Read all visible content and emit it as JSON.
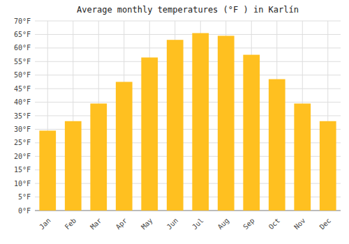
{
  "chart_data": {
    "type": "bar",
    "title": "Average monthly temperatures (°F ) in Karlín",
    "categories": [
      "Jan",
      "Feb",
      "Mar",
      "Apr",
      "May",
      "Jun",
      "Jul",
      "Aug",
      "Sep",
      "Oct",
      "Nov",
      "Dec"
    ],
    "values": [
      29.5,
      33.0,
      39.5,
      47.5,
      56.5,
      63.0,
      65.5,
      64.5,
      57.5,
      48.5,
      39.5,
      33.0
    ],
    "color": "#FFC020",
    "ylim": [
      0,
      70
    ],
    "yticks": [
      {
        "value": 0,
        "label": "0°F"
      },
      {
        "value": 5,
        "label": "5°F"
      },
      {
        "value": 10,
        "label": "10°F"
      },
      {
        "value": 15,
        "label": "15°F"
      },
      {
        "value": 20,
        "label": "20°F"
      },
      {
        "value": 25,
        "label": "25°F"
      },
      {
        "value": 30,
        "label": "30°F"
      },
      {
        "value": 35,
        "label": "35°F"
      },
      {
        "value": 40,
        "label": "40°F"
      },
      {
        "value": 45,
        "label": "45°F"
      },
      {
        "value": 50,
        "label": "50°F"
      },
      {
        "value": 55,
        "label": "55°F"
      },
      {
        "value": 60,
        "label": "60°F"
      },
      {
        "value": 65,
        "label": "65°F"
      },
      {
        "value": 70,
        "label": "70°F"
      }
    ],
    "grid": true
  }
}
